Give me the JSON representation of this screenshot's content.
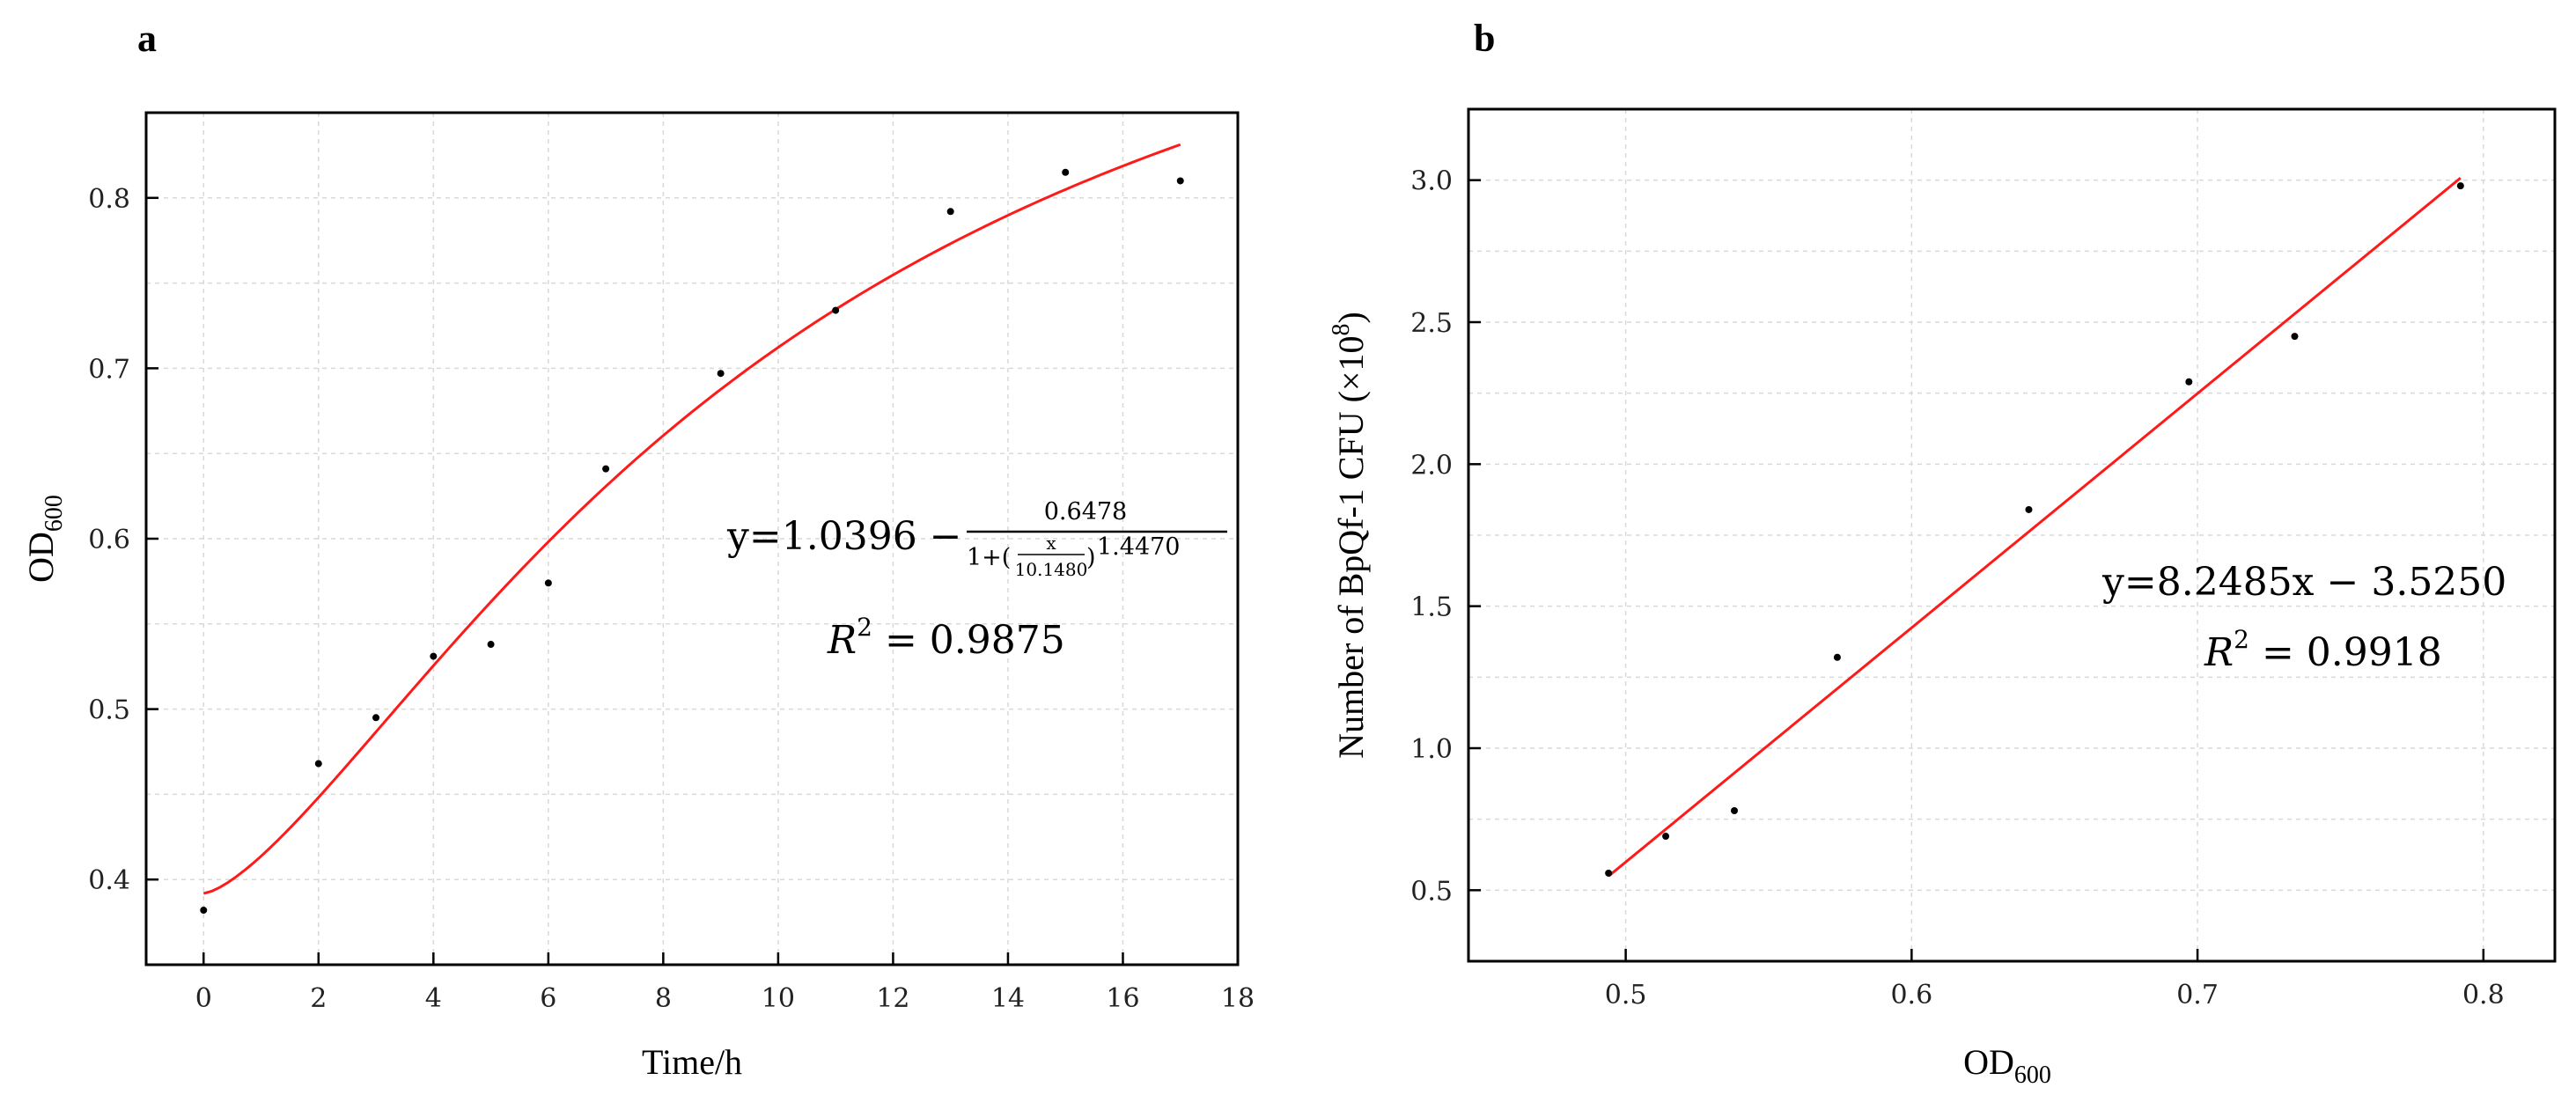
{
  "chart_data": [
    {
      "panel": "a",
      "type": "scatter",
      "title": "",
      "xlabel": "Time/h",
      "ylabel_main": "OD",
      "ylabel_sub": "600",
      "xlim": [
        -1,
        18
      ],
      "ylim": [
        0.35,
        0.85
      ],
      "xticks": [
        0,
        2,
        4,
        6,
        8,
        10,
        12,
        14,
        16,
        18
      ],
      "xtick_labels": [
        "0",
        "2",
        "4",
        "6",
        "8",
        "10",
        "12",
        "14",
        "16",
        "18"
      ],
      "yticks": [
        0.4,
        0.5,
        0.6,
        0.7,
        0.8
      ],
      "ytick_labels": [
        "0.4",
        "0.5",
        "0.6",
        "0.7",
        "0.8"
      ],
      "grid": true,
      "x": [
        0,
        2,
        3,
        4,
        5,
        6,
        7,
        9,
        11,
        13,
        15,
        17
      ],
      "y": [
        0.382,
        0.468,
        0.495,
        0.531,
        0.538,
        0.574,
        0.641,
        0.697,
        0.734,
        0.792,
        0.815,
        0.81
      ],
      "fit": {
        "model": "logistic",
        "params": {
          "A": 1.0396,
          "B": 0.6478,
          "x0": 10.148,
          "p": 1.447
        },
        "x_range": [
          0,
          17
        ],
        "color": "#ff1a1a"
      },
      "equation": {
        "lhs": "y=1.0396 −",
        "numerator": "0.6478",
        "den_prefix": "1+(",
        "den_frac_num": "x",
        "den_frac_den": "10.1480",
        "den_suffix": ")",
        "den_exp": "1.4470",
        "r2_symbol": "R",
        "r2_exp": "2",
        "r2_value": " = 0.9875"
      }
    },
    {
      "panel": "b",
      "type": "scatter",
      "title": "",
      "xlabel_main": "OD",
      "xlabel_sub": "600",
      "ylabel_main": "Number of BpQf-1 CFU (×10",
      "ylabel_sup": "8",
      "ylabel_end": ")",
      "xlim": [
        0.445,
        0.825
      ],
      "ylim": [
        0.25,
        3.25
      ],
      "xticks": [
        0.5,
        0.6,
        0.7,
        0.8
      ],
      "xtick_labels": [
        "0.5",
        "0.6",
        "0.7",
        "0.8"
      ],
      "yticks": [
        0.5,
        1.0,
        1.5,
        2.0,
        2.5,
        3.0
      ],
      "ytick_labels": [
        "0.5",
        "1.0",
        "1.5",
        "2.0",
        "2.5",
        "3.0"
      ],
      "grid": true,
      "x": [
        0.494,
        0.514,
        0.538,
        0.574,
        0.641,
        0.697,
        0.734,
        0.792
      ],
      "y": [
        0.56,
        0.69,
        0.78,
        1.32,
        1.84,
        2.29,
        2.45,
        2.98
      ],
      "fit": {
        "model": "linear",
        "params": {
          "slope": 8.2485,
          "intercept": -3.525
        },
        "x_range": [
          0.494,
          0.792
        ],
        "color": "#ff1a1a"
      },
      "equation": {
        "line": "y=8.2485x − 3.5250",
        "r2_symbol": "R",
        "r2_exp": "2",
        "r2_value": " = 0.9918"
      }
    }
  ]
}
